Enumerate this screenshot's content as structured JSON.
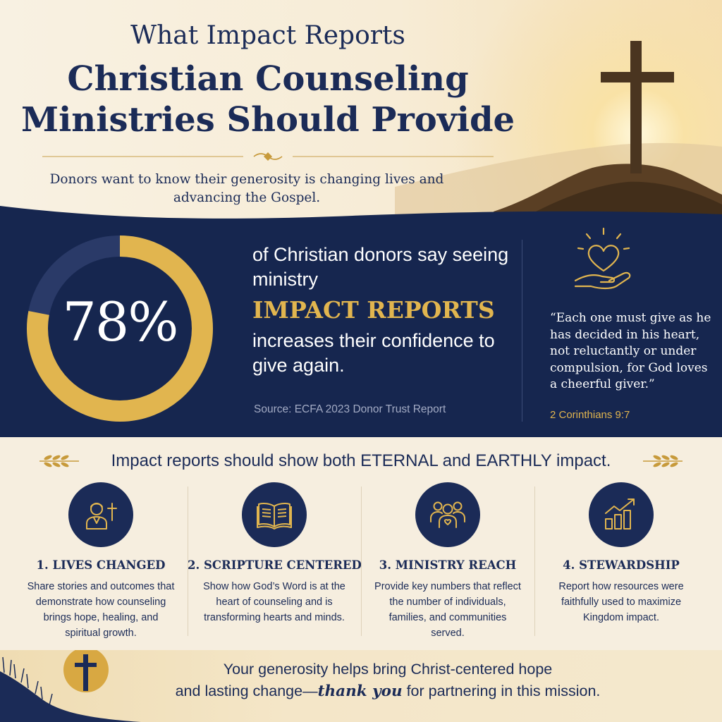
{
  "header": {
    "title_line1": "What Impact Reports",
    "title_line2": "Christian Counseling",
    "title_line3": "Ministries Should Provide",
    "subtitle": "Donors want to know their generosity is changing lives and advancing the Gospel."
  },
  "stat": {
    "percent": 78,
    "percent_label": "78%",
    "text_before": "of Christian donors say seeing ministry",
    "highlight": "IMPACT REPORTS",
    "text_after": "increases their confidence to give again.",
    "source": "Source: ECFA 2023 Donor Trust Report"
  },
  "verse": {
    "icon": "heart-in-hand-icon",
    "text": "“Each one must give as he has decided in his heart, not reluctantly or under compulsion, for God loves a cheerful giver.”",
    "reference": "2 Corinthians 9:7"
  },
  "impact": {
    "heading": "Impact reports should show both ETERNAL and EARTHLY impact.",
    "cards": [
      {
        "icon": "person-with-cross-icon",
        "title": "1. LIVES CHANGED",
        "description": "Share stories and outcomes that demonstrate how counseling brings hope, healing, and spiritual growth."
      },
      {
        "icon": "open-bible-icon",
        "title": "2. SCRIPTURE CENTERED",
        "description": "Show how God’s Word is at the heart of counseling and is transforming hearts and minds."
      },
      {
        "icon": "community-group-icon",
        "title": "3. MINISTRY REACH",
        "description": "Provide key numbers that reflect the number of individuals, families, and communities served."
      },
      {
        "icon": "growth-chart-icon",
        "title": "4. STEWARDSHIP",
        "description": "Report how resources were faithfully used to maximize Kingdom impact."
      }
    ]
  },
  "footer": {
    "line1": "Your generosity helps bring Christ-centered hope",
    "line2_before": "and lasting change—",
    "line2_emphasis": "thank you",
    "line2_after": " for partnering in this mission."
  },
  "colors": {
    "navy": "#1b2b57",
    "gold": "#e1b54f",
    "cream": "#f6eedf"
  }
}
